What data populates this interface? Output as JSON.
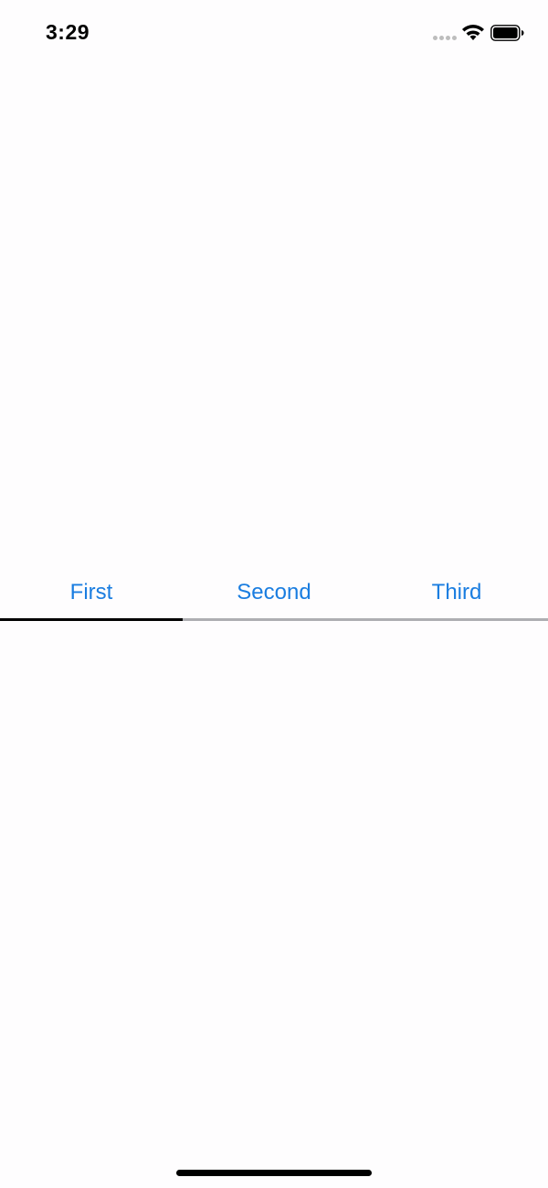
{
  "status_bar": {
    "time": "3:29",
    "icons": [
      "signal-icon",
      "wifi-icon",
      "battery-icon"
    ]
  },
  "tabs": [
    {
      "label": "First",
      "selected": true
    },
    {
      "label": "Second",
      "selected": false
    },
    {
      "label": "Third",
      "selected": false
    }
  ],
  "colors": {
    "tab_label": "#1a7de0",
    "indicator": "#000000",
    "track": "#aeaeb2",
    "background": "#fefdfe"
  }
}
